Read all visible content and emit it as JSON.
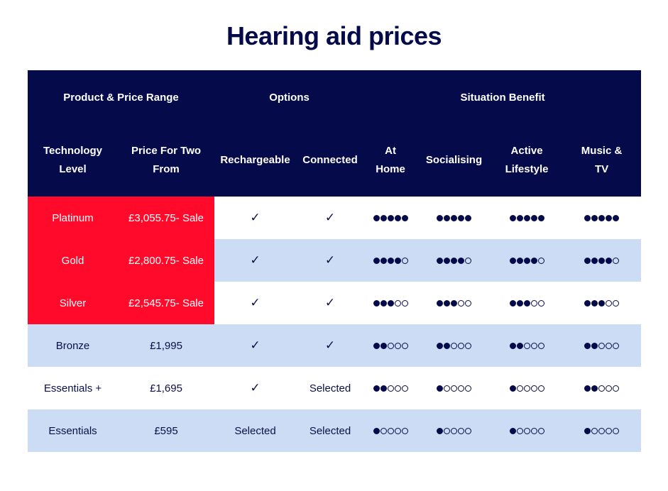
{
  "title": "Hearing aid prices",
  "header": {
    "groups": [
      {
        "label": "Product & Price Range",
        "span": 2
      },
      {
        "label": "Options",
        "span": 2
      },
      {
        "label": "Situation Benefit",
        "span": 4
      }
    ],
    "columns": [
      [
        "Technology",
        "Level"
      ],
      [
        "Price For Two",
        "From"
      ],
      [
        "Rechargeable"
      ],
      [
        "Connected"
      ],
      [
        "At",
        "Home"
      ],
      [
        "Socialising"
      ],
      [
        "Active",
        "Lifestyle"
      ],
      [
        "Music &",
        "TV"
      ]
    ]
  },
  "check_symbol": "✓",
  "rows": [
    {
      "level": "Platinum",
      "price": "£3,055.75- Sale",
      "rechargeable": "check",
      "connected": "check",
      "ratings": [
        5,
        5,
        5,
        5
      ],
      "highlight": true,
      "style": "white"
    },
    {
      "level": "Gold",
      "price": "£2,800.75- Sale",
      "rechargeable": "check",
      "connected": "check",
      "ratings": [
        4,
        4,
        4,
        4
      ],
      "highlight": true,
      "style": "blue"
    },
    {
      "level": "Silver",
      "price": "£2,545.75- Sale",
      "rechargeable": "check",
      "connected": "check",
      "ratings": [
        3,
        3,
        3,
        3
      ],
      "highlight": true,
      "style": "white"
    },
    {
      "level": "Bronze",
      "price": "£1,995",
      "rechargeable": "check",
      "connected": "check",
      "ratings": [
        2,
        2,
        2,
        2
      ],
      "highlight": false,
      "style": "blue"
    },
    {
      "level": "Essentials +",
      "price": "£1,695",
      "rechargeable": "check",
      "connected": "Selected",
      "ratings": [
        2,
        1,
        1,
        2
      ],
      "highlight": false,
      "style": "white"
    },
    {
      "level": "Essentials",
      "price": "£595",
      "rechargeable": "Selected",
      "connected": "Selected",
      "ratings": [
        1,
        1,
        1,
        1
      ],
      "highlight": false,
      "style": "blue"
    }
  ],
  "rating_max": 5,
  "colors": {
    "navy": "#050a4a",
    "highlight_red": "#ff0a2a",
    "row_blue": "#cbdcf4",
    "row_white": "#ffffff"
  }
}
